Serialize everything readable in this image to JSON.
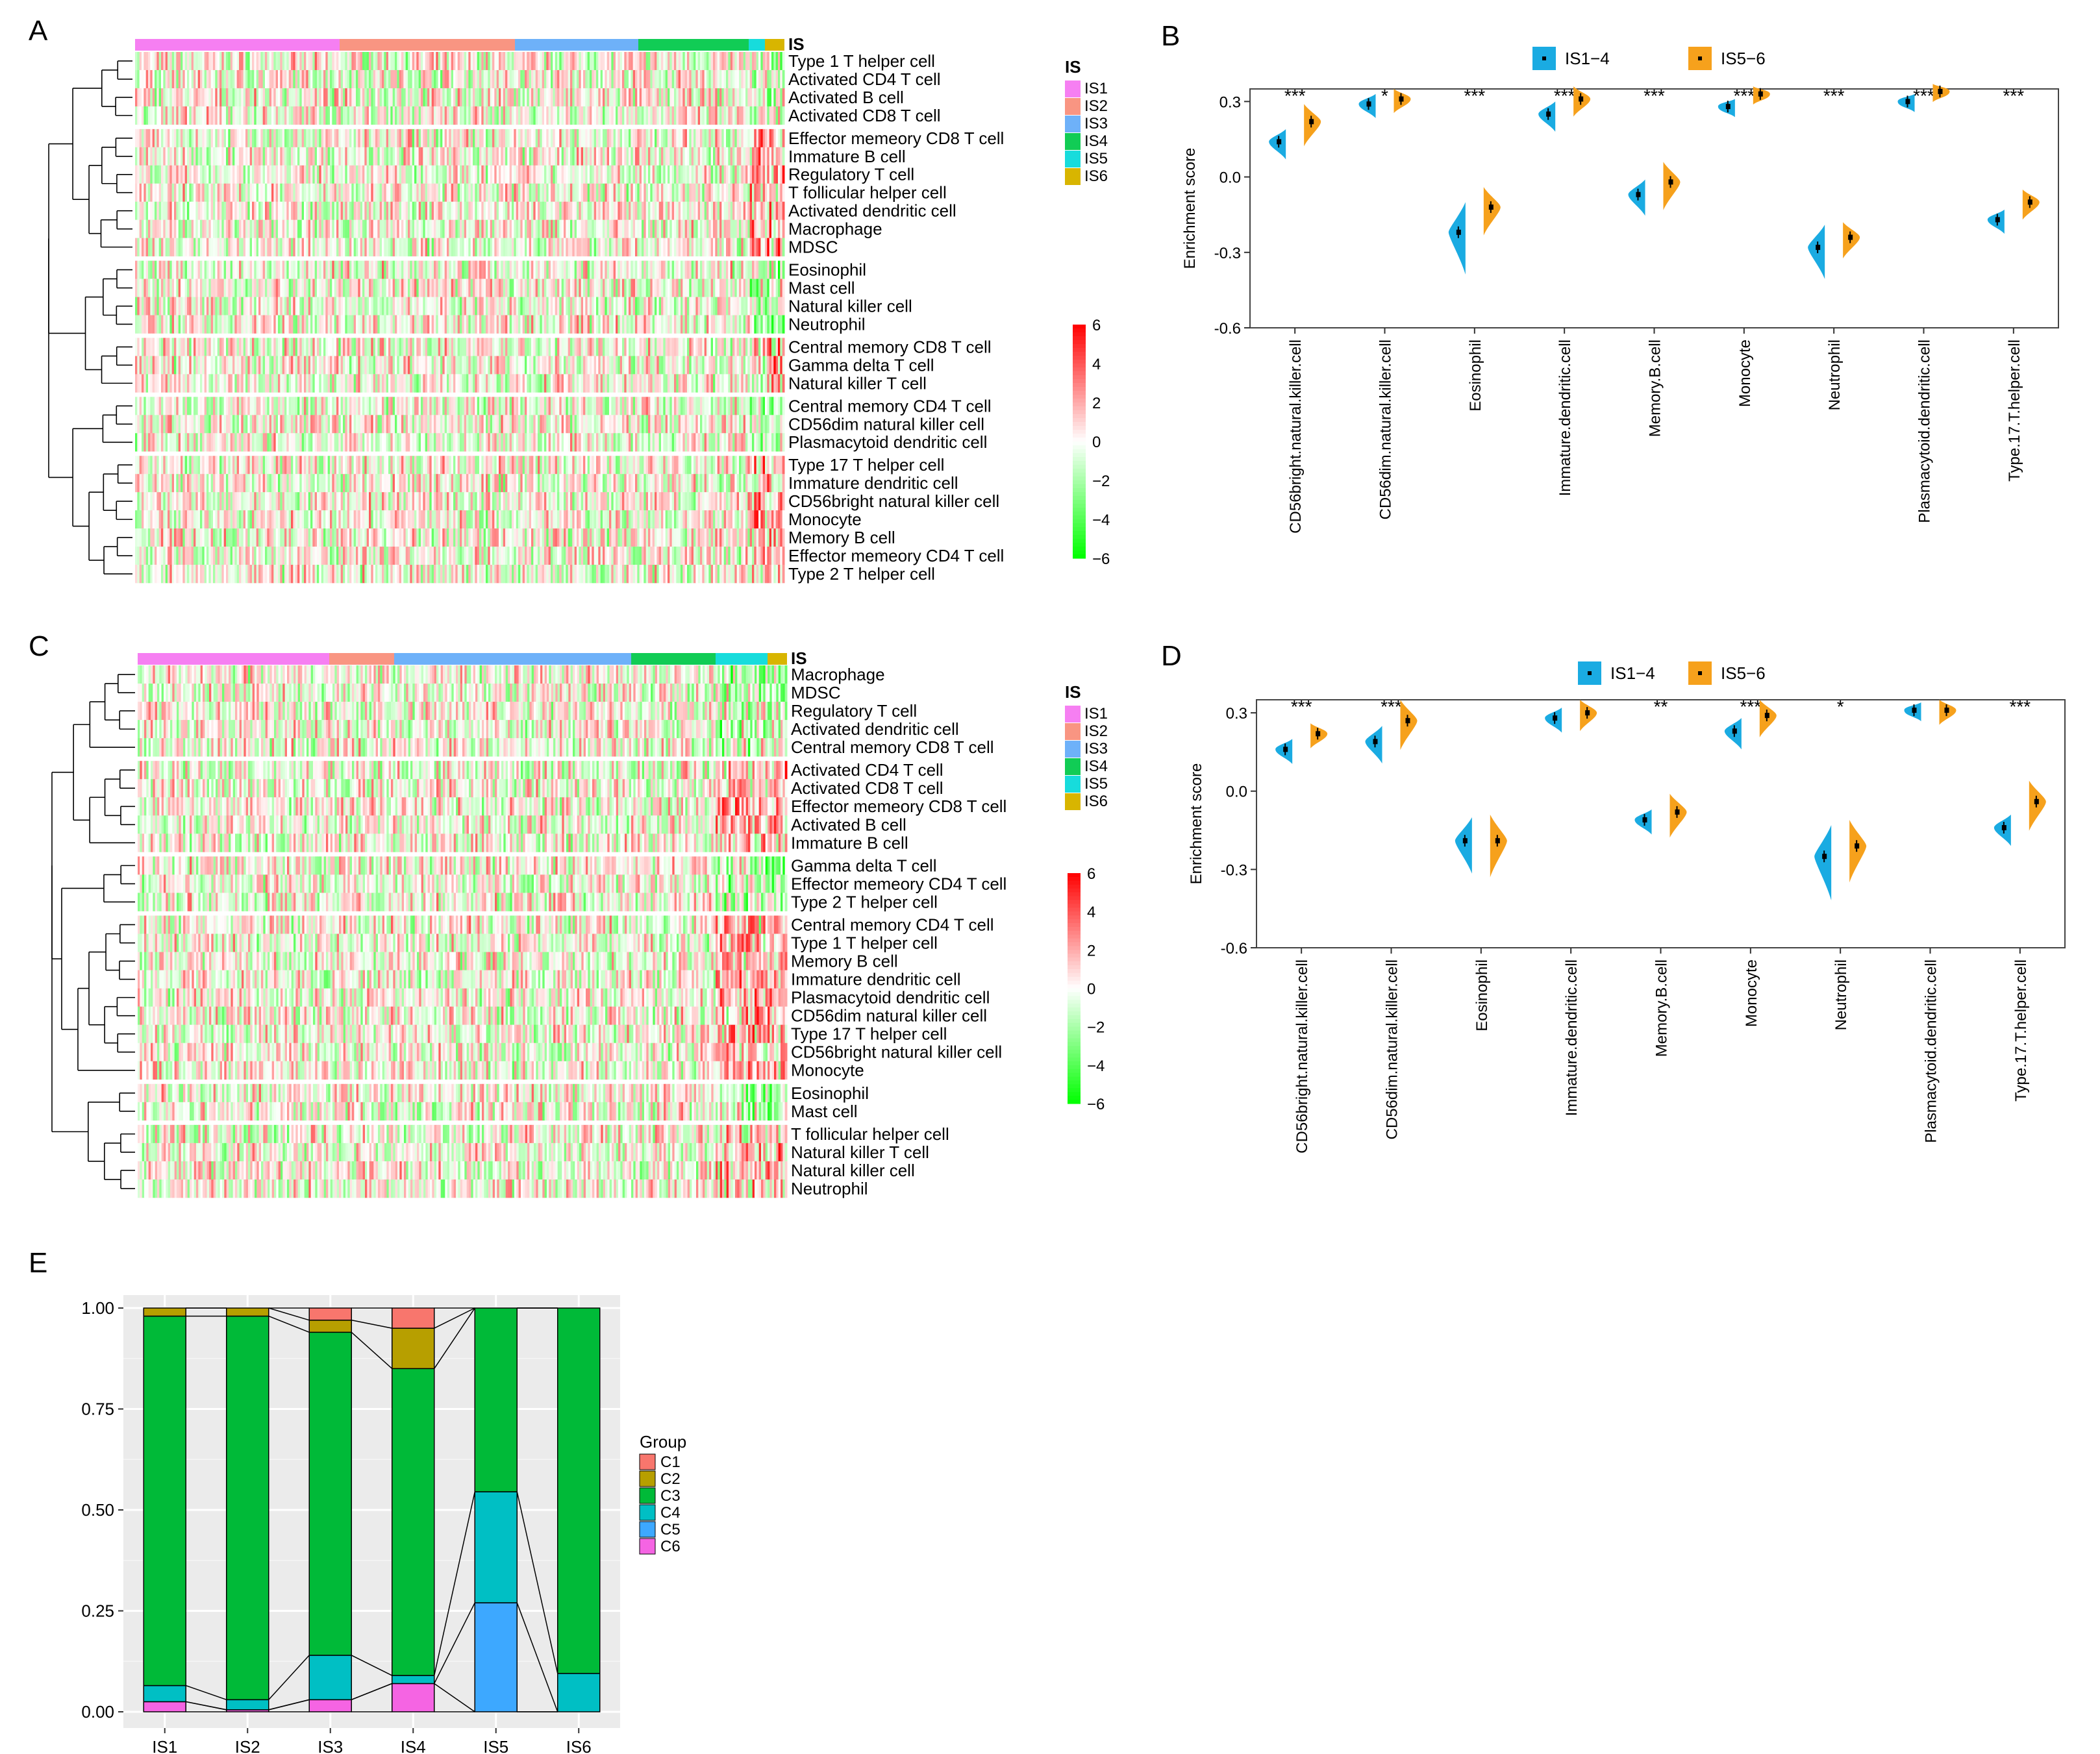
{
  "panel_letters": {
    "a": "A",
    "b": "B",
    "c": "C",
    "d": "D",
    "e": "E"
  },
  "colors": {
    "IS1": "#f67ff2",
    "IS2": "#f99582",
    "IS3": "#6eb1f9",
    "IS4": "#11cc55",
    "IS5": "#17dcdc",
    "IS6": "#d8b500",
    "IS1-4": "#1aabe2",
    "IS5-6": "#f6a11c",
    "heat_high": "#ff0000",
    "heat_mid": "#ffffff",
    "heat_low": "#00ff00",
    "C1": "#f8766d",
    "C2": "#b79f00",
    "C3": "#00ba38",
    "C4": "#00bfc4",
    "C5": "#3da8ff",
    "C6": "#f564e3",
    "panel_bg": "#ebebeb"
  },
  "heatmap_common": {
    "annotation_label": "IS",
    "legend_title": "IS",
    "legend_items": [
      "IS1",
      "IS2",
      "IS3",
      "IS4",
      "IS5",
      "IS6"
    ],
    "scale_labels": [
      "6",
      "4",
      "2",
      "0",
      "−2",
      "−4",
      "−6"
    ],
    "scale_values": [
      6,
      4,
      2,
      0,
      -2,
      -4,
      -6
    ]
  },
  "chart_data": [
    {
      "id": "A",
      "type": "heatmap",
      "title": "",
      "is_fractions": [
        0.315,
        0.27,
        0.19,
        0.17,
        0.025,
        0.03
      ],
      "row_groups": [
        [
          "Type 1 T helper cell",
          "Activated CD4 T cell",
          "Activated B cell",
          "Activated CD8 T cell"
        ],
        [
          "Effector memeory CD8 T cell",
          "Immature  B cell",
          "Regulatory T cell",
          "T follicular helper cell",
          "Activated dendritic cell",
          "Macrophage",
          "MDSC"
        ],
        [
          "Eosinophil",
          "Mast cell",
          "Natural killer cell",
          "Neutrophil"
        ],
        [
          "Central memory CD8 T cell",
          "Gamma delta T cell",
          "Natural killer T cell"
        ],
        [
          "Central memory CD4 T cell",
          "CD56dim natural killer cell",
          "Plasmacytoid dendritic cell"
        ],
        [
          "Type 17 T helper cell",
          "Immature dendritic cell",
          "CD56bright natural killer cell",
          "Monocyte",
          "Memory B cell",
          "Effector memeory CD4 T cell",
          "Type 2 T helper cell"
        ]
      ],
      "value_range": [
        -6,
        6
      ]
    },
    {
      "id": "C",
      "type": "heatmap",
      "title": "",
      "is_fractions": [
        0.295,
        0.1,
        0.365,
        0.13,
        0.08,
        0.03
      ],
      "row_groups": [
        [
          "Macrophage",
          "MDSC",
          "Regulatory T cell",
          "Activated dendritic cell",
          "Central memory CD8 T cell"
        ],
        [
          "Activated CD4 T cell",
          "Activated CD8 T cell",
          "Effector memeory CD8 T cell",
          "Activated B cell",
          "Immature  B cell"
        ],
        [
          "Gamma delta T cell",
          "Effector memeory CD4 T cell",
          "Type 2 T helper cell"
        ],
        [
          "Central memory CD4 T cell",
          "Type 1 T helper cell",
          "Memory B cell",
          "Immature dendritic cell",
          "Plasmacytoid dendritic cell",
          "CD56dim natural killer cell",
          "Type 17 T helper cell",
          "CD56bright natural killer cell",
          "Monocyte"
        ],
        [
          "Eosinophil",
          "Mast cell"
        ],
        [
          "T follicular helper cell",
          "Natural killer T cell",
          "Natural killer cell",
          "Neutrophil"
        ]
      ],
      "value_range": [
        -6,
        6
      ]
    },
    {
      "id": "B",
      "type": "violin",
      "title": "",
      "ylabel": "Enrichment score",
      "ylim": [
        -0.6,
        0.35
      ],
      "yticks": [
        0.3,
        0.0,
        -0.3,
        -0.6
      ],
      "ytick_labels": [
        "0.3",
        "0.0",
        "-0.3",
        "-0.6"
      ],
      "legend": [
        "IS1−4",
        "IS5−6"
      ],
      "categories": [
        "CD56bright.natural.killer.cell",
        "CD56dim.natural.killer.cell",
        "Eosinophil",
        "Immature.dendritic.cell",
        "Memory.B.cell",
        "Monocyte",
        "Neutrophil",
        "Plasmacytoid.dendritic.cell",
        "Type.17.T.helper.cell"
      ],
      "significance": [
        "***",
        "*",
        "***",
        "***",
        "***",
        "***",
        "***",
        "***",
        "***"
      ],
      "series": [
        {
          "name": "IS1−4",
          "means": [
            0.14,
            0.29,
            -0.22,
            0.25,
            -0.07,
            0.28,
            -0.28,
            0.3,
            -0.17
          ],
          "spread": [
            0.05,
            0.04,
            0.12,
            0.05,
            0.06,
            0.03,
            0.09,
            0.03,
            0.04
          ]
        },
        {
          "name": "IS5−6",
          "means": [
            0.22,
            0.31,
            -0.12,
            0.31,
            -0.02,
            0.33,
            -0.24,
            0.34,
            -0.1
          ],
          "spread": [
            0.07,
            0.04,
            0.08,
            0.05,
            0.08,
            0.03,
            0.06,
            0.03,
            0.05
          ]
        }
      ]
    },
    {
      "id": "D",
      "type": "violin",
      "title": "",
      "ylabel": "Enrichment score",
      "ylim": [
        -0.6,
        0.35
      ],
      "yticks": [
        0.3,
        0.0,
        -0.3,
        -0.6
      ],
      "ytick_labels": [
        "0.3",
        "0.0",
        "-0.3",
        "-0.6"
      ],
      "legend": [
        "IS1−4",
        "IS5−6"
      ],
      "categories": [
        "CD56bright.natural.killer.cell",
        "CD56dim.natural.killer.cell",
        "Eosinophil",
        "Immature.dendritic.cell",
        "Memory.B.cell",
        "Monocyte",
        "Neutrophil",
        "Plasmacytoid.dendritic.cell",
        "Type.17.T.helper.cell"
      ],
      "significance": [
        "***",
        "***",
        "",
        "",
        "**",
        "***",
        "*",
        "",
        "***"
      ],
      "series": [
        {
          "name": "IS1−4",
          "means": [
            0.16,
            0.19,
            -0.19,
            0.28,
            -0.11,
            0.23,
            -0.25,
            0.31,
            -0.14
          ],
          "spread": [
            0.04,
            0.06,
            0.09,
            0.04,
            0.04,
            0.05,
            0.12,
            0.03,
            0.05
          ]
        },
        {
          "name": "IS5−6",
          "means": [
            0.22,
            0.27,
            -0.19,
            0.3,
            -0.08,
            0.29,
            -0.21,
            0.31,
            -0.04
          ],
          "spread": [
            0.04,
            0.08,
            0.1,
            0.05,
            0.07,
            0.06,
            0.1,
            0.04,
            0.08
          ]
        }
      ]
    },
    {
      "id": "E",
      "type": "bar",
      "stacked": true,
      "title": "",
      "xlabel": "",
      "ylabel": "",
      "ylim": [
        0,
        1
      ],
      "yticks": [
        0.0,
        0.25,
        0.5,
        0.75,
        1.0
      ],
      "ytick_labels": [
        "0.00",
        "0.25",
        "0.50",
        "0.75",
        "1.00"
      ],
      "categories": [
        "IS1",
        "IS2",
        "IS3",
        "IS4",
        "IS5",
        "IS6"
      ],
      "legend_title": "Group",
      "series": [
        {
          "name": "C1",
          "values": [
            0.0,
            0.0,
            0.03,
            0.05,
            0.0,
            0.0
          ]
        },
        {
          "name": "C2",
          "values": [
            0.02,
            0.02,
            0.03,
            0.1,
            0.0,
            0.0
          ]
        },
        {
          "name": "C3",
          "values": [
            0.915,
            0.95,
            0.8,
            0.76,
            0.455,
            0.905
          ]
        },
        {
          "name": "C4",
          "values": [
            0.04,
            0.025,
            0.11,
            0.02,
            0.275,
            0.095
          ]
        },
        {
          "name": "C5",
          "values": [
            0.0,
            0.0,
            0.0,
            0.0,
            0.27,
            0.0
          ]
        },
        {
          "name": "C6",
          "values": [
            0.025,
            0.005,
            0.03,
            0.07,
            0.0,
            0.0
          ]
        }
      ]
    }
  ]
}
